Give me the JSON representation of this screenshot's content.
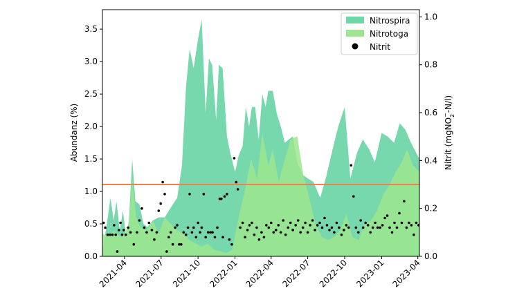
{
  "chart_data": {
    "type": "area",
    "xlabel": "",
    "ylabel": "Abundanz (%)",
    "ylabel_right": "Nitrit (mgNO",
    "ylabel_right_sub": "2",
    "ylabel_right_sup": "−",
    "ylabel_right_tail": "-N/l)",
    "x_ticks": [
      "2021-04",
      "2021-07",
      "2021-10",
      "2022-01",
      "2022-04",
      "2022-07",
      "2022-10",
      "2023-01",
      "2023-04"
    ],
    "xlim": [
      "2021-02-05",
      "2023-04-05"
    ],
    "ylim": [
      0,
      3.8
    ],
    "ylim_right": [
      0,
      1.03
    ],
    "y_ticks": [
      "0.0",
      "0.5",
      "1.0",
      "1.5",
      "2.0",
      "2.5",
      "3.0",
      "3.5"
    ],
    "y_ticks_right": [
      "0.0",
      "0.2",
      "0.4",
      "0.6",
      "0.8",
      "1.0"
    ],
    "legend_position": "top-right",
    "legend": [
      "Nitrospira",
      "Nitrotoga",
      "Nitrit"
    ],
    "colors": {
      "nitrospira": "#6fd6a8",
      "nitrotoga": "#9ee68e",
      "nitrit": "#000000",
      "threshold": "#f08050"
    },
    "reference_line": {
      "axis": "right",
      "value": 0.3
    },
    "series": [
      {
        "name": "Nitrospira",
        "kind": "area",
        "points": [
          [
            "2021-02-05",
            0.1
          ],
          [
            "2021-02-15",
            0.45
          ],
          [
            "2021-02-25",
            0.9
          ],
          [
            "2021-03-05",
            0.55
          ],
          [
            "2021-03-12",
            0.85
          ],
          [
            "2021-03-20",
            0.4
          ],
          [
            "2021-03-28",
            0.7
          ],
          [
            "2021-04-05",
            0.3
          ],
          [
            "2021-04-12",
            0.55
          ],
          [
            "2021-04-20",
            1.5
          ],
          [
            "2021-04-28",
            0.85
          ],
          [
            "2021-05-08",
            0.8
          ],
          [
            "2021-05-18",
            0.5
          ],
          [
            "2021-05-28",
            0.45
          ],
          [
            "2021-06-10",
            0.55
          ],
          [
            "2021-06-25",
            0.6
          ],
          [
            "2021-07-10",
            0.6
          ],
          [
            "2021-07-25",
            0.75
          ],
          [
            "2021-08-10",
            0.9
          ],
          [
            "2021-08-22",
            1.4
          ],
          [
            "2021-09-01",
            2.6
          ],
          [
            "2021-09-10",
            3.2
          ],
          [
            "2021-09-20",
            2.9
          ],
          [
            "2021-10-01",
            3.35
          ],
          [
            "2021-10-10",
            3.65
          ],
          [
            "2021-10-20",
            2.2
          ],
          [
            "2021-10-28",
            3.05
          ],
          [
            "2021-11-05",
            2.95
          ],
          [
            "2021-11-15",
            2.1
          ],
          [
            "2021-11-22",
            2.95
          ],
          [
            "2021-12-01",
            2.9
          ],
          [
            "2021-12-12",
            1.85
          ],
          [
            "2021-12-20",
            1.6
          ],
          [
            "2022-01-01",
            1.3
          ],
          [
            "2022-01-10",
            1.55
          ],
          [
            "2022-01-20",
            1.7
          ],
          [
            "2022-01-28",
            2.3
          ],
          [
            "2022-02-05",
            2.0
          ],
          [
            "2022-02-12",
            2.3
          ],
          [
            "2022-02-20",
            2.3
          ],
          [
            "2022-03-01",
            1.8
          ],
          [
            "2022-03-10",
            2.5
          ],
          [
            "2022-03-18",
            2.3
          ],
          [
            "2022-03-25",
            2.55
          ],
          [
            "2022-04-05",
            2.55
          ],
          [
            "2022-04-15",
            2.2
          ],
          [
            "2022-04-25",
            2.0
          ],
          [
            "2022-05-05",
            1.75
          ],
          [
            "2022-05-15",
            1.8
          ],
          [
            "2022-05-25",
            1.85
          ],
          [
            "2022-06-05",
            1.45
          ],
          [
            "2022-06-20",
            1.25
          ],
          [
            "2022-07-01",
            1.2
          ],
          [
            "2022-07-15",
            1.15
          ],
          [
            "2022-08-01",
            0.9
          ],
          [
            "2022-08-15",
            1.2
          ],
          [
            "2022-09-01",
            1.65
          ],
          [
            "2022-09-15",
            2.0
          ],
          [
            "2022-10-01",
            2.3
          ],
          [
            "2022-10-15",
            1.2
          ],
          [
            "2022-11-01",
            1.6
          ],
          [
            "2022-11-15",
            1.8
          ],
          [
            "2022-12-01",
            1.65
          ],
          [
            "2022-12-15",
            1.45
          ],
          [
            "2023-01-01",
            1.9
          ],
          [
            "2023-01-15",
            1.85
          ],
          [
            "2023-02-01",
            1.75
          ],
          [
            "2023-02-15",
            2.05
          ],
          [
            "2023-03-01",
            1.95
          ],
          [
            "2023-03-15",
            1.75
          ],
          [
            "2023-04-05",
            1.5
          ]
        ]
      },
      {
        "name": "Nitrotoga",
        "kind": "area",
        "points": [
          [
            "2021-02-05",
            0.35
          ],
          [
            "2021-02-20",
            0.3
          ],
          [
            "2021-03-05",
            0.4
          ],
          [
            "2021-03-20",
            0.3
          ],
          [
            "2021-04-01",
            0.35
          ],
          [
            "2021-04-12",
            0.5
          ],
          [
            "2021-04-20",
            1.2
          ],
          [
            "2021-04-30",
            0.6
          ],
          [
            "2021-05-10",
            0.45
          ],
          [
            "2021-05-25",
            0.4
          ],
          [
            "2021-06-10",
            0.55
          ],
          [
            "2021-06-25",
            0.35
          ],
          [
            "2021-07-10",
            0.6
          ],
          [
            "2021-07-25",
            0.5
          ],
          [
            "2021-08-10",
            0.4
          ],
          [
            "2021-08-25",
            0.35
          ],
          [
            "2021-09-10",
            0.25
          ],
          [
            "2021-09-25",
            0.2
          ],
          [
            "2021-10-10",
            0.15
          ],
          [
            "2021-10-25",
            0.2
          ],
          [
            "2021-11-10",
            0.1
          ],
          [
            "2021-11-25",
            0.08
          ],
          [
            "2021-12-10",
            0.05
          ],
          [
            "2021-12-25",
            0.1
          ],
          [
            "2022-01-10",
            0.6
          ],
          [
            "2022-01-25",
            1.0
          ],
          [
            "2022-02-10",
            1.5
          ],
          [
            "2022-02-25",
            1.2
          ],
          [
            "2022-03-10",
            1.9
          ],
          [
            "2022-03-25",
            1.4
          ],
          [
            "2022-04-05",
            1.65
          ],
          [
            "2022-04-20",
            1.15
          ],
          [
            "2022-05-05",
            1.5
          ],
          [
            "2022-05-20",
            1.8
          ],
          [
            "2022-06-05",
            1.85
          ],
          [
            "2022-06-20",
            1.25
          ],
          [
            "2022-07-05",
            0.9
          ],
          [
            "2022-07-20",
            0.5
          ],
          [
            "2022-08-05",
            0.3
          ],
          [
            "2022-08-20",
            0.25
          ],
          [
            "2022-09-05",
            0.3
          ],
          [
            "2022-09-20",
            0.4
          ],
          [
            "2022-10-05",
            0.65
          ],
          [
            "2022-10-20",
            0.3
          ],
          [
            "2022-11-05",
            0.25
          ],
          [
            "2022-11-20",
            0.5
          ],
          [
            "2022-12-05",
            0.55
          ],
          [
            "2022-12-20",
            0.7
          ],
          [
            "2023-01-05",
            0.95
          ],
          [
            "2023-01-20",
            1.1
          ],
          [
            "2023-02-05",
            1.3
          ],
          [
            "2023-02-20",
            1.45
          ],
          [
            "2023-03-05",
            1.65
          ],
          [
            "2023-03-20",
            1.4
          ],
          [
            "2023-04-05",
            1.3
          ]
        ]
      },
      {
        "name": "Nitrit",
        "kind": "scatter",
        "axis": "right",
        "points": [
          [
            "2021-02-08",
            0.14
          ],
          [
            "2021-02-12",
            0.12
          ],
          [
            "2021-02-18",
            0.09
          ],
          [
            "2021-02-24",
            0.09
          ],
          [
            "2021-03-02",
            0.09
          ],
          [
            "2021-03-06",
            0.13
          ],
          [
            "2021-03-10",
            0.09
          ],
          [
            "2021-03-14",
            0.02
          ],
          [
            "2021-03-18",
            0.11
          ],
          [
            "2021-03-22",
            0.14
          ],
          [
            "2021-03-26",
            0.09
          ],
          [
            "2021-03-30",
            0.11
          ],
          [
            "2021-04-04",
            0.09
          ],
          [
            "2021-04-10",
            0.12
          ],
          [
            "2021-04-16",
            0.1
          ],
          [
            "2021-04-24",
            0.05
          ],
          [
            "2021-05-02",
            0.1
          ],
          [
            "2021-05-08",
            0.15
          ],
          [
            "2021-05-14",
            0.2
          ],
          [
            "2021-05-20",
            0.12
          ],
          [
            "2021-05-26",
            0.1
          ],
          [
            "2021-06-01",
            0.14
          ],
          [
            "2021-06-08",
            0.11
          ],
          [
            "2021-06-14",
            0.07
          ],
          [
            "2021-06-20",
            0.1
          ],
          [
            "2021-06-25",
            0.19
          ],
          [
            "2021-06-30",
            0.22
          ],
          [
            "2021-07-05",
            0.31
          ],
          [
            "2021-07-10",
            0.26
          ],
          [
            "2021-07-15",
            0.02
          ],
          [
            "2021-07-20",
            0.08
          ],
          [
            "2021-07-25",
            0.1
          ],
          [
            "2021-07-30",
            0.05
          ],
          [
            "2021-08-05",
            0.12
          ],
          [
            "2021-08-10",
            0.13
          ],
          [
            "2021-08-15",
            0.05
          ],
          [
            "2021-08-20",
            0.05
          ],
          [
            "2021-08-26",
            0.1
          ],
          [
            "2021-09-01",
            0.09
          ],
          [
            "2021-09-06",
            0.12
          ],
          [
            "2021-09-10",
            0.26
          ],
          [
            "2021-09-16",
            0.1
          ],
          [
            "2021-09-20",
            0.12
          ],
          [
            "2021-09-26",
            0.08
          ],
          [
            "2021-10-01",
            0.14
          ],
          [
            "2021-10-06",
            0.1
          ],
          [
            "2021-10-10",
            0.12
          ],
          [
            "2021-10-15",
            0.26
          ],
          [
            "2021-10-20",
            0.08
          ],
          [
            "2021-10-26",
            0.1
          ],
          [
            "2021-11-01",
            0.1
          ],
          [
            "2021-11-06",
            0.1
          ],
          [
            "2021-11-12",
            0.08
          ],
          [
            "2021-11-18",
            0.12
          ],
          [
            "2021-11-24",
            0.24
          ],
          [
            "2021-11-28",
            0.24
          ],
          [
            "2021-12-02",
            0.08
          ],
          [
            "2021-12-06",
            0.25
          ],
          [
            "2021-12-12",
            0.26
          ],
          [
            "2021-12-18",
            0.07
          ],
          [
            "2021-12-24",
            0.05
          ],
          [
            "2021-12-30",
            0.41
          ],
          [
            "2022-01-04",
            0.31
          ],
          [
            "2022-01-08",
            0.28
          ],
          [
            "2022-01-14",
            0.12
          ],
          [
            "2022-01-20",
            0.14
          ],
          [
            "2022-01-26",
            0.08
          ],
          [
            "2022-02-01",
            0.11
          ],
          [
            "2022-02-06",
            0.13
          ],
          [
            "2022-02-12",
            0.14
          ],
          [
            "2022-02-18",
            0.09
          ],
          [
            "2022-02-24",
            0.12
          ],
          [
            "2022-03-02",
            0.07
          ],
          [
            "2022-03-08",
            0.1
          ],
          [
            "2022-03-14",
            0.08
          ],
          [
            "2022-03-20",
            0.13
          ],
          [
            "2022-03-26",
            0.12
          ],
          [
            "2022-04-01",
            0.14
          ],
          [
            "2022-04-07",
            0.1
          ],
          [
            "2022-04-13",
            0.11
          ],
          [
            "2022-04-19",
            0.13
          ],
          [
            "2022-04-25",
            0.1
          ],
          [
            "2022-05-01",
            0.15
          ],
          [
            "2022-05-07",
            0.09
          ],
          [
            "2022-05-13",
            0.12
          ],
          [
            "2022-05-19",
            0.14
          ],
          [
            "2022-05-25",
            0.11
          ],
          [
            "2022-06-01",
            0.13
          ],
          [
            "2022-06-07",
            0.15
          ],
          [
            "2022-06-13",
            0.1
          ],
          [
            "2022-06-19",
            0.12
          ],
          [
            "2022-06-25",
            0.14
          ],
          [
            "2022-07-01",
            0.1
          ],
          [
            "2022-07-07",
            0.13
          ],
          [
            "2022-07-13",
            0.15
          ],
          [
            "2022-07-19",
            0.11
          ],
          [
            "2022-07-25",
            0.13
          ],
          [
            "2022-07-31",
            0.14
          ],
          [
            "2022-08-06",
            0.12
          ],
          [
            "2022-08-12",
            0.16
          ],
          [
            "2022-08-18",
            0.13
          ],
          [
            "2022-08-24",
            0.11
          ],
          [
            "2022-08-30",
            0.12
          ],
          [
            "2022-09-05",
            0.1
          ],
          [
            "2022-09-11",
            0.14
          ],
          [
            "2022-09-17",
            0.12
          ],
          [
            "2022-09-23",
            0.09
          ],
          [
            "2022-09-29",
            0.11
          ],
          [
            "2022-10-05",
            0.13
          ],
          [
            "2022-10-11",
            0.12
          ],
          [
            "2022-10-17",
            0.38
          ],
          [
            "2022-10-23",
            0.25
          ],
          [
            "2022-10-29",
            0.12
          ],
          [
            "2022-11-04",
            0.1
          ],
          [
            "2022-11-10",
            0.15
          ],
          [
            "2022-11-16",
            0.12
          ],
          [
            "2022-11-22",
            0.14
          ],
          [
            "2022-11-28",
            0.13
          ],
          [
            "2022-12-04",
            0.1
          ],
          [
            "2022-12-10",
            0.12
          ],
          [
            "2022-12-16",
            0.14
          ],
          [
            "2022-12-22",
            0.12
          ],
          [
            "2022-12-28",
            0.12
          ],
          [
            "2023-01-03",
            0.13
          ],
          [
            "2023-01-09",
            0.16
          ],
          [
            "2023-01-15",
            0.17
          ],
          [
            "2023-01-21",
            0.12
          ],
          [
            "2023-01-27",
            0.1
          ],
          [
            "2023-02-02",
            0.14
          ],
          [
            "2023-02-08",
            0.12
          ],
          [
            "2023-02-14",
            0.18
          ],
          [
            "2023-02-20",
            0.14
          ],
          [
            "2023-02-26",
            0.23
          ],
          [
            "2023-03-04",
            0.12
          ],
          [
            "2023-03-10",
            0.14
          ],
          [
            "2023-03-16",
            0.13
          ],
          [
            "2023-03-22",
            0.09
          ],
          [
            "2023-03-28",
            0.14
          ],
          [
            "2023-04-03",
            0.13
          ]
        ]
      }
    ]
  }
}
